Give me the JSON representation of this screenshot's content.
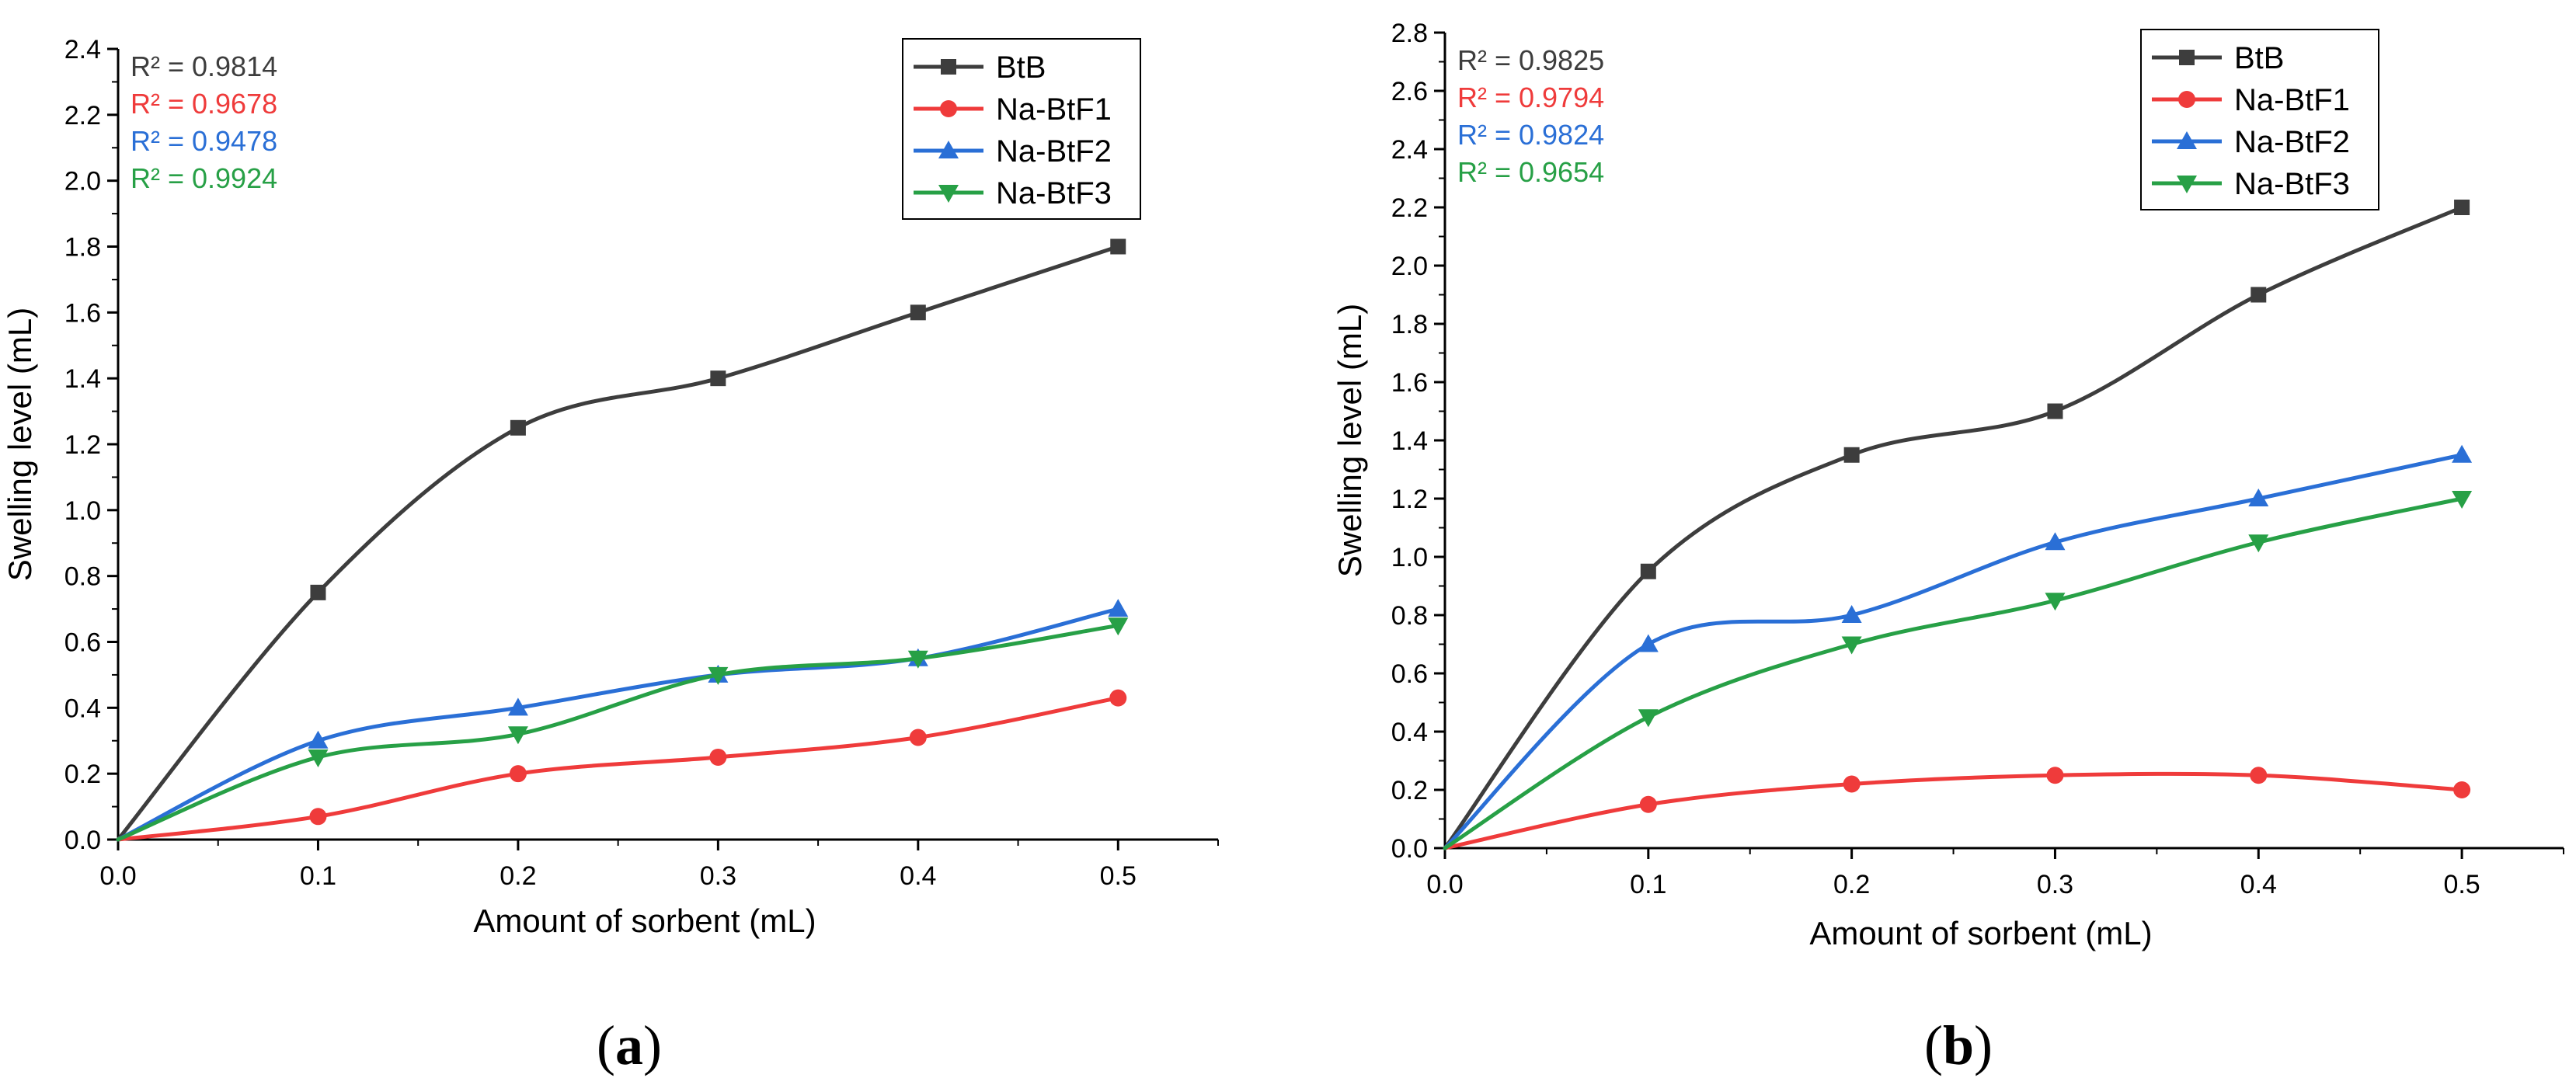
{
  "colors": {
    "BtB": "#3d3d3d",
    "Na-BtF1": "#ef3b3b",
    "Na-BtF2": "#2a6fd6",
    "Na-BtF3": "#27a046",
    "axis": "#000000"
  },
  "chart_data": [
    {
      "type": "line",
      "panel_label": "(a)",
      "xlabel": "Amount of sorbent (mL)",
      "ylabel": "Swelling level (mL)",
      "xlim": [
        0.0,
        0.55
      ],
      "ylim": [
        0.0,
        2.4
      ],
      "xticks": [
        "0.0",
        "0.1",
        "0.2",
        "0.3",
        "0.4",
        "0.5"
      ],
      "yticks": [
        "0.0",
        "0.2",
        "0.4",
        "0.6",
        "0.8",
        "1.0",
        "1.2",
        "1.4",
        "1.6",
        "1.8",
        "2.0",
        "2.2",
        "2.4"
      ],
      "legend_position": "top-right",
      "x": [
        0.0,
        0.1,
        0.2,
        0.3,
        0.4,
        0.5
      ],
      "series": [
        {
          "name": "BtB",
          "marker": "square",
          "values": [
            0.0,
            0.75,
            1.25,
            1.4,
            1.6,
            1.8
          ],
          "r2": "R² = 0.9814"
        },
        {
          "name": "Na-BtF1",
          "marker": "circle",
          "values": [
            0.0,
            0.07,
            0.2,
            0.25,
            0.31,
            0.43
          ],
          "r2": "R² = 0.9678"
        },
        {
          "name": "Na-BtF2",
          "marker": "triangle-up",
          "values": [
            0.0,
            0.3,
            0.4,
            0.5,
            0.55,
            0.7
          ],
          "r2": "R² = 0.9478"
        },
        {
          "name": "Na-BtF3",
          "marker": "triangle-down",
          "values": [
            0.0,
            0.25,
            0.32,
            0.5,
            0.55,
            0.65
          ],
          "r2": "R² = 0.9924"
        }
      ]
    },
    {
      "type": "line",
      "panel_label": "(b)",
      "xlabel": "Amount of sorbent (mL)",
      "ylabel": "Swelling level (mL)",
      "xlim": [
        0.0,
        0.55
      ],
      "ylim": [
        0.0,
        2.8
      ],
      "xticks": [
        "0.0",
        "0.1",
        "0.2",
        "0.3",
        "0.4",
        "0.5"
      ],
      "yticks": [
        "0.0",
        "0.2",
        "0.4",
        "0.6",
        "0.8",
        "1.0",
        "1.2",
        "1.4",
        "1.6",
        "1.8",
        "2.0",
        "2.2",
        "2.4",
        "2.6",
        "2.8"
      ],
      "legend_position": "top-right",
      "x": [
        0.0,
        0.1,
        0.2,
        0.3,
        0.4,
        0.5
      ],
      "series": [
        {
          "name": "BtB",
          "marker": "square",
          "values": [
            0.0,
            0.95,
            1.35,
            1.5,
            1.9,
            2.2
          ],
          "r2": "R² = 0.9825"
        },
        {
          "name": "Na-BtF1",
          "marker": "circle",
          "values": [
            0.0,
            0.15,
            0.22,
            0.25,
            0.25,
            0.2
          ],
          "r2": "R² = 0.9794"
        },
        {
          "name": "Na-BtF2",
          "marker": "triangle-up",
          "values": [
            0.0,
            0.7,
            0.8,
            1.05,
            1.2,
            1.35
          ],
          "r2": "R² = 0.9824"
        },
        {
          "name": "Na-BtF3",
          "marker": "triangle-down",
          "values": [
            0.0,
            0.45,
            0.7,
            0.85,
            1.05,
            1.2
          ],
          "r2": "R² = 0.9654"
        }
      ]
    }
  ]
}
